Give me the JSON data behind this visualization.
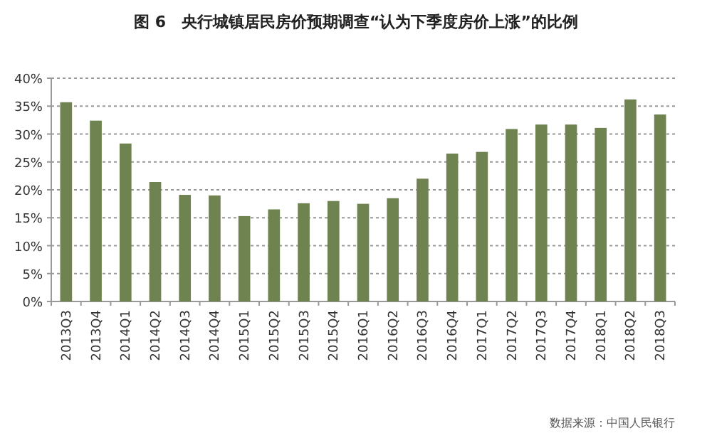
{
  "chart_data": {
    "type": "bar",
    "title": "图 6　央行城镇居民房价预期调查“认为下季度房价上涨”的比例",
    "categories": [
      "2013Q3",
      "2013Q4",
      "2014Q1",
      "2014Q2",
      "2014Q3",
      "2014Q4",
      "2015Q1",
      "2015Q2",
      "2015Q3",
      "2015Q4",
      "2016Q1",
      "2016Q2",
      "2016Q3",
      "2016Q4",
      "2017Q1",
      "2017Q2",
      "2017Q3",
      "2017Q4",
      "2018Q1",
      "2018Q2",
      "2018Q3"
    ],
    "values": [
      35.7,
      32.4,
      28.3,
      21.4,
      19.1,
      19.0,
      15.3,
      16.5,
      17.6,
      18.0,
      17.5,
      18.5,
      22.0,
      26.5,
      26.8,
      30.9,
      31.7,
      31.7,
      31.1,
      36.2,
      33.5
    ],
    "color": "#6e8350",
    "ylim": [
      0,
      40
    ],
    "yticks": [
      {
        "value": 0,
        "label": "0%"
      },
      {
        "value": 5,
        "label": "5%"
      },
      {
        "value": 10,
        "label": "10%"
      },
      {
        "value": 15,
        "label": "15%"
      },
      {
        "value": 20,
        "label": "20%"
      },
      {
        "value": 25,
        "label": "25%"
      },
      {
        "value": 30,
        "label": "30%"
      },
      {
        "value": 35,
        "label": "35%"
      },
      {
        "value": 40,
        "label": "40%"
      }
    ],
    "grid": "y",
    "annotations": [
      "数据来源：中国人民银行"
    ]
  }
}
